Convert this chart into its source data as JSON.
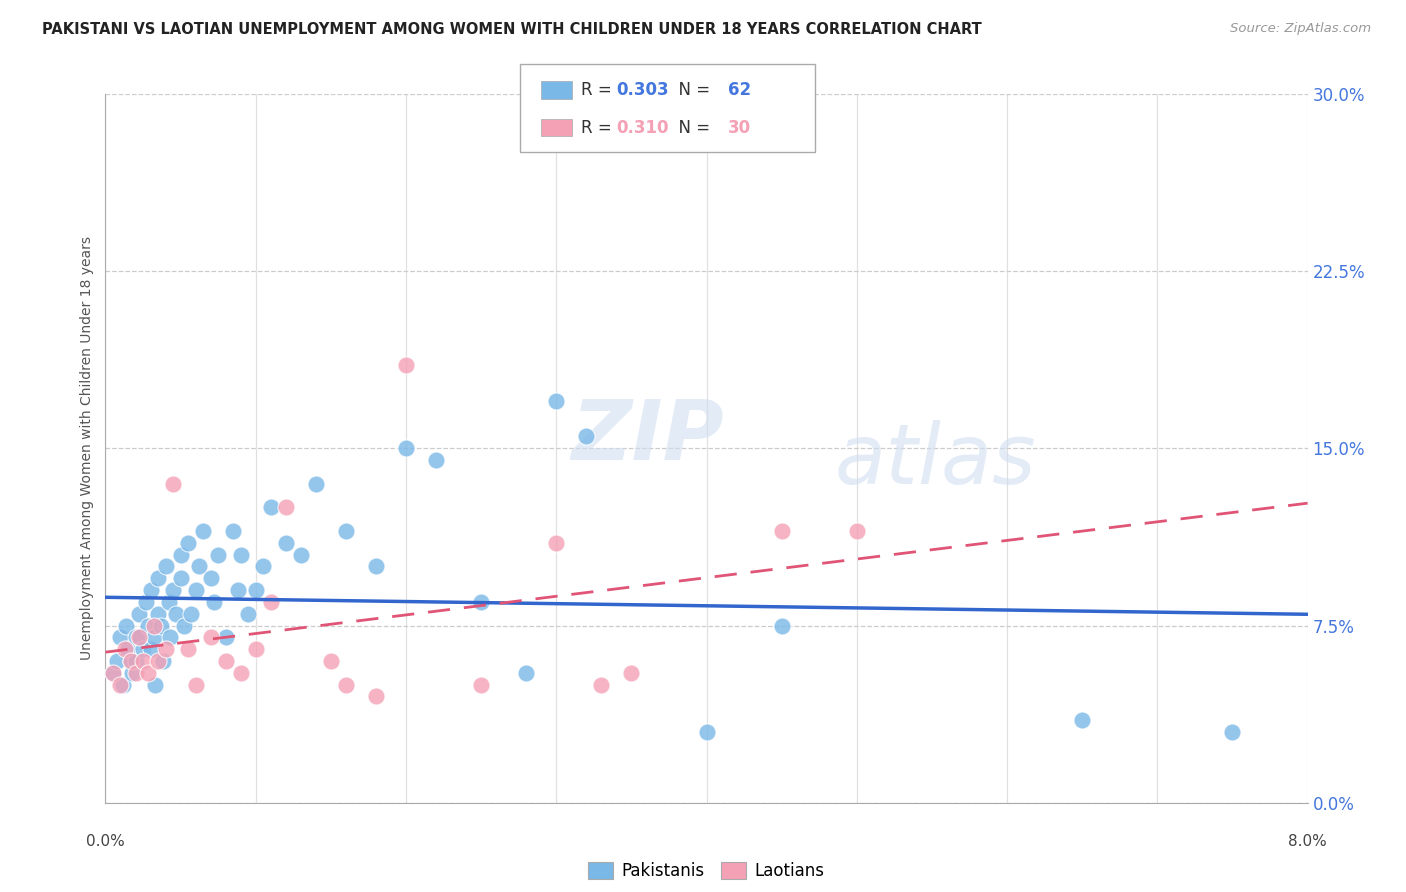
{
  "title": "PAKISTANI VS LAOTIAN UNEMPLOYMENT AMONG WOMEN WITH CHILDREN UNDER 18 YEARS CORRELATION CHART",
  "source": "Source: ZipAtlas.com",
  "ylabel": "Unemployment Among Women with Children Under 18 years",
  "xlim": [
    0.0,
    8.0
  ],
  "ylim": [
    0.0,
    30.0
  ],
  "ytick_vals": [
    0.0,
    7.5,
    15.0,
    22.5,
    30.0
  ],
  "xtick_vals": [
    0.0,
    1.0,
    2.0,
    3.0,
    4.0,
    5.0,
    6.0,
    7.0,
    8.0
  ],
  "pakistani_R": "0.303",
  "pakistani_N": "62",
  "laotian_R": "0.310",
  "laotian_N": "30",
  "pakistani_color": "#7ab8e8",
  "laotian_color": "#f4a0b5",
  "pakistani_line_color": "#3366cc",
  "laotian_line_color": "#e05575",
  "bg_color": "#ffffff",
  "grid_color": "#cccccc",
  "title_color": "#222222",
  "right_axis_color": "#4477dd",
  "watermark_color": "#d0dff0",
  "pakistani_x": [
    0.05,
    0.08,
    0.1,
    0.12,
    0.14,
    0.15,
    0.17,
    0.18,
    0.2,
    0.2,
    0.22,
    0.23,
    0.25,
    0.27,
    0.28,
    0.3,
    0.3,
    0.32,
    0.33,
    0.35,
    0.35,
    0.37,
    0.38,
    0.4,
    0.42,
    0.43,
    0.45,
    0.47,
    0.5,
    0.5,
    0.52,
    0.55,
    0.57,
    0.6,
    0.62,
    0.65,
    0.7,
    0.72,
    0.75,
    0.8,
    0.85,
    0.88,
    0.9,
    0.95,
    1.0,
    1.05,
    1.1,
    1.2,
    1.3,
    1.4,
    1.6,
    1.8,
    2.0,
    2.2,
    2.5,
    2.8,
    3.0,
    3.2,
    4.0,
    4.5,
    6.5,
    7.5
  ],
  "pakistani_y": [
    5.5,
    6.0,
    7.0,
    5.0,
    7.5,
    6.5,
    6.0,
    5.5,
    7.0,
    6.0,
    8.0,
    7.0,
    6.5,
    8.5,
    7.5,
    9.0,
    6.5,
    7.0,
    5.0,
    9.5,
    8.0,
    7.5,
    6.0,
    10.0,
    8.5,
    7.0,
    9.0,
    8.0,
    9.5,
    10.5,
    7.5,
    11.0,
    8.0,
    9.0,
    10.0,
    11.5,
    9.5,
    8.5,
    10.5,
    7.0,
    11.5,
    9.0,
    10.5,
    8.0,
    9.0,
    10.0,
    12.5,
    11.0,
    10.5,
    13.5,
    11.5,
    10.0,
    15.0,
    14.5,
    8.5,
    5.5,
    17.0,
    15.5,
    3.0,
    7.5,
    3.5,
    3.0
  ],
  "laotian_x": [
    0.05,
    0.1,
    0.13,
    0.17,
    0.2,
    0.22,
    0.25,
    0.28,
    0.32,
    0.35,
    0.4,
    0.45,
    0.55,
    0.6,
    0.7,
    0.8,
    0.9,
    1.0,
    1.1,
    1.2,
    1.5,
    1.6,
    1.8,
    2.0,
    2.5,
    3.0,
    3.3,
    3.5,
    4.5,
    5.0
  ],
  "laotian_y": [
    5.5,
    5.0,
    6.5,
    6.0,
    5.5,
    7.0,
    6.0,
    5.5,
    7.5,
    6.0,
    6.5,
    13.5,
    6.5,
    5.0,
    7.0,
    6.0,
    5.5,
    6.5,
    8.5,
    12.5,
    6.0,
    5.0,
    4.5,
    18.5,
    5.0,
    11.0,
    5.0,
    5.5,
    11.5,
    11.5
  ]
}
